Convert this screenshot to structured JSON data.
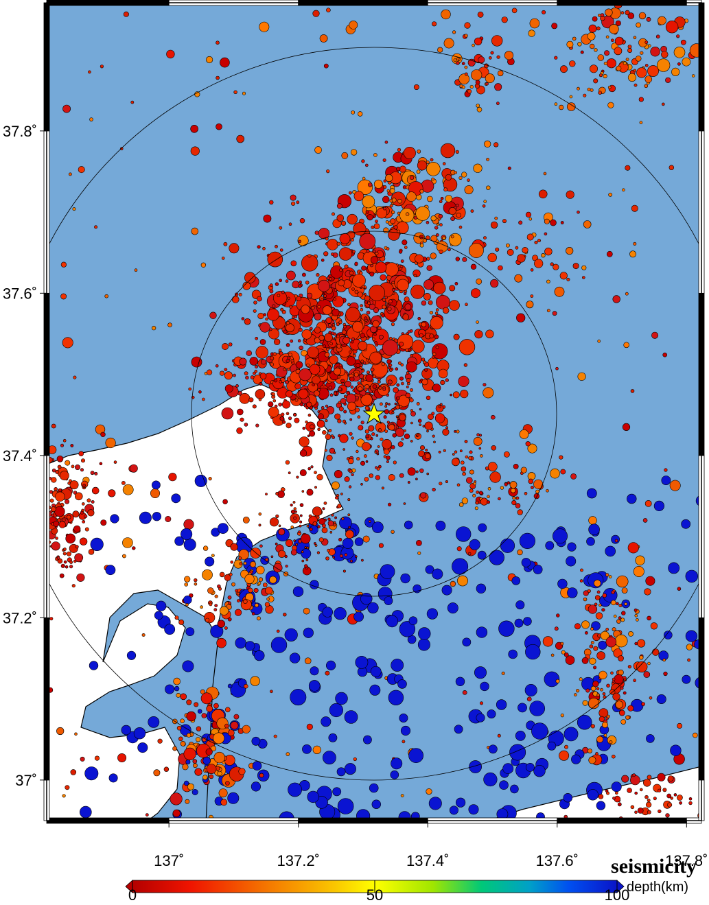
{
  "map": {
    "title": "seismicity",
    "xlim": [
      136.811,
      137.823
    ],
    "ylim": [
      36.95,
      37.958
    ],
    "xticks": [
      {
        "value": 137,
        "label": "137˚"
      },
      {
        "value": 137.2,
        "label": "137.2˚"
      },
      {
        "value": 137.4,
        "label": "137.4˚"
      },
      {
        "value": 137.6,
        "label": "137.6˚"
      },
      {
        "value": 137.8,
        "label": "137.8˚"
      }
    ],
    "yticks": [
      {
        "value": 37,
        "label": "37˚"
      },
      {
        "value": 37.2,
        "label": "37.2˚"
      },
      {
        "value": 37.4,
        "label": "37.4˚"
      },
      {
        "value": 37.6,
        "label": "37.6˚"
      },
      {
        "value": 37.8,
        "label": "37.8˚"
      }
    ],
    "colorbar": {
      "label": "depth(km)",
      "ticks": [
        0,
        50,
        100
      ]
    }
  }
}
